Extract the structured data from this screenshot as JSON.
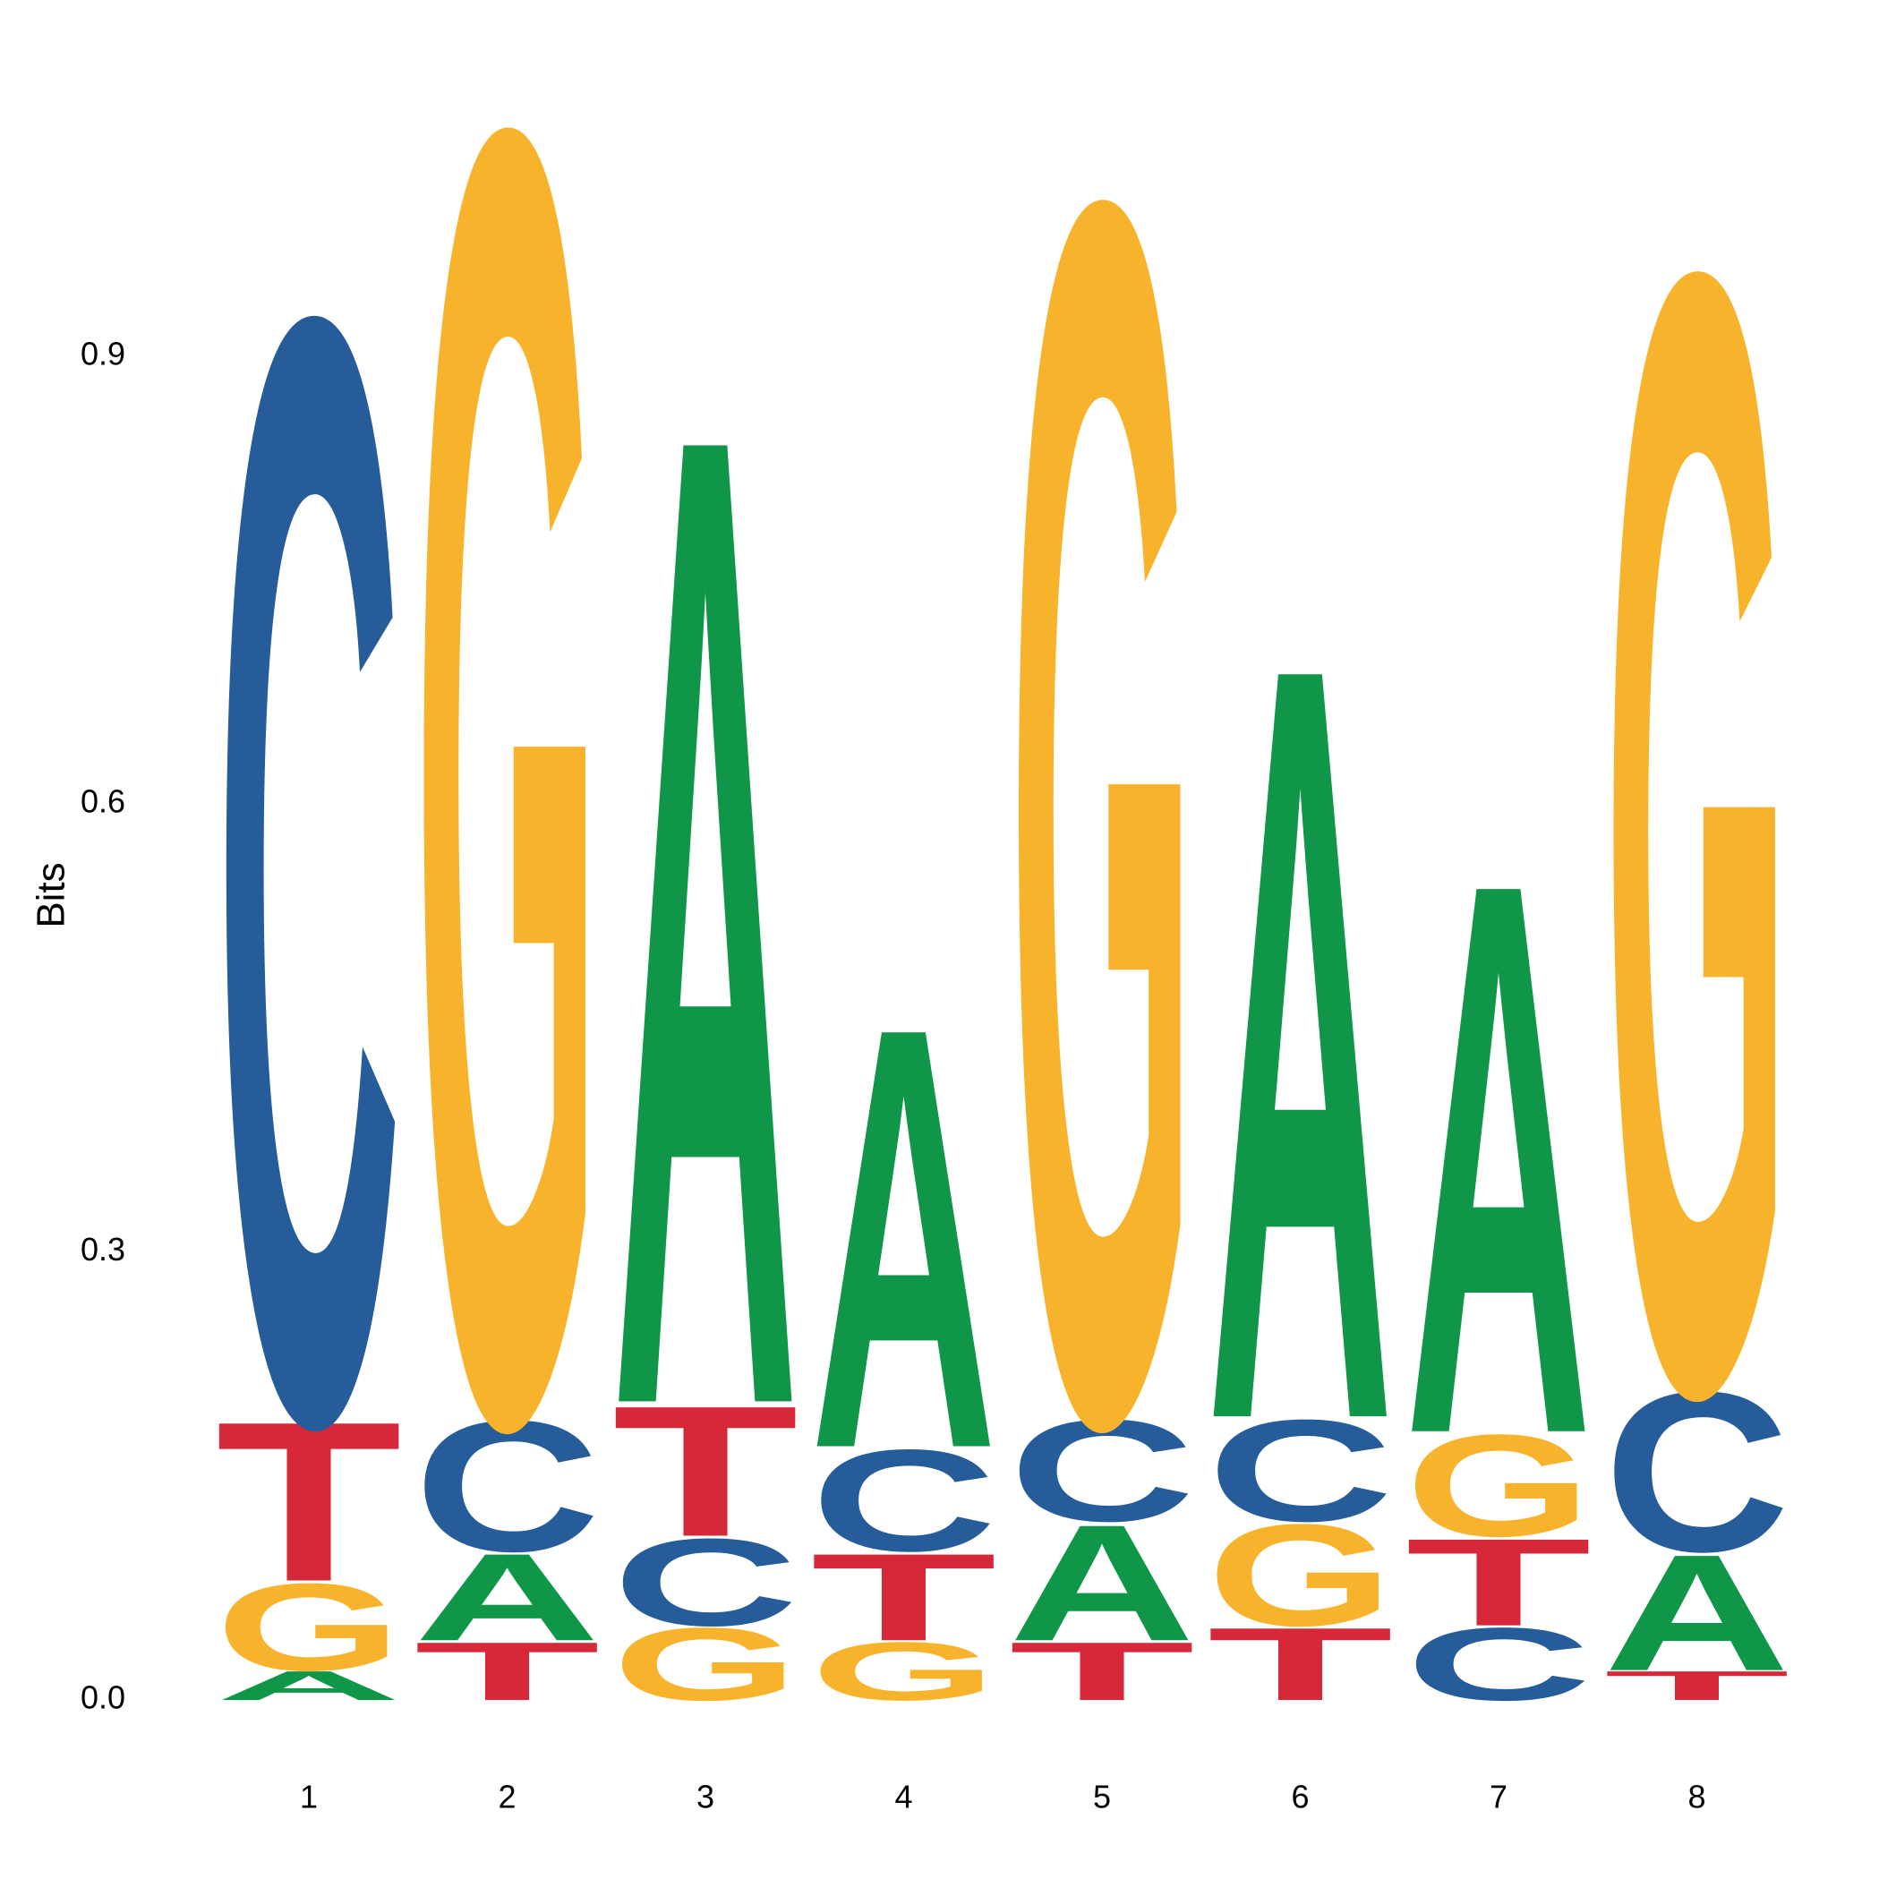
{
  "chart_data": {
    "type": "sequence-logo",
    "ylabel": "Bits",
    "ylim": [
      0,
      1.09
    ],
    "yticks": [
      "0.0",
      "0.3",
      "0.6",
      "0.9"
    ],
    "ytick_values": [
      0,
      0.3,
      0.6,
      0.9
    ],
    "positions": [
      "1",
      "2",
      "3",
      "4",
      "5",
      "6",
      "7",
      "8"
    ],
    "colors": {
      "A": "#109648",
      "C": "#255C99",
      "G": "#F7B32B",
      "T": "#D62839"
    },
    "stacks": [
      [
        {
          "letter": "A",
          "bits": 0.02
        },
        {
          "letter": "G",
          "bits": 0.06
        },
        {
          "letter": "T",
          "bits": 0.11
        },
        {
          "letter": "C",
          "bits": 0.76
        }
      ],
      [
        {
          "letter": "T",
          "bits": 0.04
        },
        {
          "letter": "A",
          "bits": 0.06
        },
        {
          "letter": "C",
          "bits": 0.09
        },
        {
          "letter": "G",
          "bits": 0.89
        }
      ],
      [
        {
          "letter": "G",
          "bits": 0.05
        },
        {
          "letter": "C",
          "bits": 0.06
        },
        {
          "letter": "T",
          "bits": 0.09
        },
        {
          "letter": "A",
          "bits": 0.67
        }
      ],
      [
        {
          "letter": "G",
          "bits": 0.04
        },
        {
          "letter": "T",
          "bits": 0.06
        },
        {
          "letter": "C",
          "bits": 0.07
        },
        {
          "letter": "A",
          "bits": 0.29
        }
      ],
      [
        {
          "letter": "T",
          "bits": 0.04
        },
        {
          "letter": "A",
          "bits": 0.08
        },
        {
          "letter": "C",
          "bits": 0.07
        },
        {
          "letter": "G",
          "bits": 0.84
        }
      ],
      [
        {
          "letter": "T",
          "bits": 0.05
        },
        {
          "letter": "G",
          "bits": 0.07
        },
        {
          "letter": "C",
          "bits": 0.07
        },
        {
          "letter": "A",
          "bits": 0.52
        }
      ],
      [
        {
          "letter": "C",
          "bits": 0.05
        },
        {
          "letter": "T",
          "bits": 0.06
        },
        {
          "letter": "G",
          "bits": 0.07
        },
        {
          "letter": "A",
          "bits": 0.38
        }
      ],
      [
        {
          "letter": "T",
          "bits": 0.02
        },
        {
          "letter": "A",
          "bits": 0.08
        },
        {
          "letter": "C",
          "bits": 0.11
        },
        {
          "letter": "G",
          "bits": 0.77
        }
      ]
    ]
  }
}
